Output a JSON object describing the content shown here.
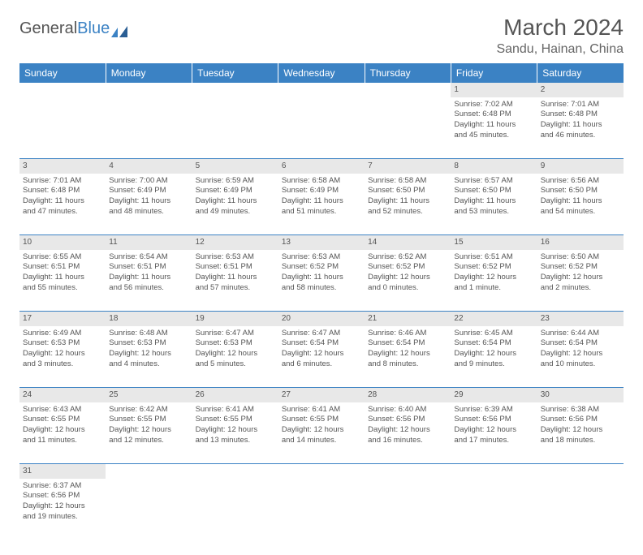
{
  "logo": {
    "text1": "General",
    "text2": "Blue"
  },
  "title": "March 2024",
  "location": "Sandu, Hainan, China",
  "colors": {
    "header_bg": "#3b82c4",
    "header_text": "#ffffff",
    "daynum_bg": "#e8e8e8",
    "border": "#3b82c4",
    "text": "#555555",
    "logo_blue": "#3b82c4"
  },
  "weekdays": [
    "Sunday",
    "Monday",
    "Tuesday",
    "Wednesday",
    "Thursday",
    "Friday",
    "Saturday"
  ],
  "weeks": [
    {
      "nums": [
        "",
        "",
        "",
        "",
        "",
        "1",
        "2"
      ],
      "cells": [
        null,
        null,
        null,
        null,
        null,
        {
          "sunrise": "Sunrise: 7:02 AM",
          "sunset": "Sunset: 6:48 PM",
          "day1": "Daylight: 11 hours",
          "day2": "and 45 minutes."
        },
        {
          "sunrise": "Sunrise: 7:01 AM",
          "sunset": "Sunset: 6:48 PM",
          "day1": "Daylight: 11 hours",
          "day2": "and 46 minutes."
        }
      ]
    },
    {
      "nums": [
        "3",
        "4",
        "5",
        "6",
        "7",
        "8",
        "9"
      ],
      "cells": [
        {
          "sunrise": "Sunrise: 7:01 AM",
          "sunset": "Sunset: 6:48 PM",
          "day1": "Daylight: 11 hours",
          "day2": "and 47 minutes."
        },
        {
          "sunrise": "Sunrise: 7:00 AM",
          "sunset": "Sunset: 6:49 PM",
          "day1": "Daylight: 11 hours",
          "day2": "and 48 minutes."
        },
        {
          "sunrise": "Sunrise: 6:59 AM",
          "sunset": "Sunset: 6:49 PM",
          "day1": "Daylight: 11 hours",
          "day2": "and 49 minutes."
        },
        {
          "sunrise": "Sunrise: 6:58 AM",
          "sunset": "Sunset: 6:49 PM",
          "day1": "Daylight: 11 hours",
          "day2": "and 51 minutes."
        },
        {
          "sunrise": "Sunrise: 6:58 AM",
          "sunset": "Sunset: 6:50 PM",
          "day1": "Daylight: 11 hours",
          "day2": "and 52 minutes."
        },
        {
          "sunrise": "Sunrise: 6:57 AM",
          "sunset": "Sunset: 6:50 PM",
          "day1": "Daylight: 11 hours",
          "day2": "and 53 minutes."
        },
        {
          "sunrise": "Sunrise: 6:56 AM",
          "sunset": "Sunset: 6:50 PM",
          "day1": "Daylight: 11 hours",
          "day2": "and 54 minutes."
        }
      ]
    },
    {
      "nums": [
        "10",
        "11",
        "12",
        "13",
        "14",
        "15",
        "16"
      ],
      "cells": [
        {
          "sunrise": "Sunrise: 6:55 AM",
          "sunset": "Sunset: 6:51 PM",
          "day1": "Daylight: 11 hours",
          "day2": "and 55 minutes."
        },
        {
          "sunrise": "Sunrise: 6:54 AM",
          "sunset": "Sunset: 6:51 PM",
          "day1": "Daylight: 11 hours",
          "day2": "and 56 minutes."
        },
        {
          "sunrise": "Sunrise: 6:53 AM",
          "sunset": "Sunset: 6:51 PM",
          "day1": "Daylight: 11 hours",
          "day2": "and 57 minutes."
        },
        {
          "sunrise": "Sunrise: 6:53 AM",
          "sunset": "Sunset: 6:52 PM",
          "day1": "Daylight: 11 hours",
          "day2": "and 58 minutes."
        },
        {
          "sunrise": "Sunrise: 6:52 AM",
          "sunset": "Sunset: 6:52 PM",
          "day1": "Daylight: 12 hours",
          "day2": "and 0 minutes."
        },
        {
          "sunrise": "Sunrise: 6:51 AM",
          "sunset": "Sunset: 6:52 PM",
          "day1": "Daylight: 12 hours",
          "day2": "and 1 minute."
        },
        {
          "sunrise": "Sunrise: 6:50 AM",
          "sunset": "Sunset: 6:52 PM",
          "day1": "Daylight: 12 hours",
          "day2": "and 2 minutes."
        }
      ]
    },
    {
      "nums": [
        "17",
        "18",
        "19",
        "20",
        "21",
        "22",
        "23"
      ],
      "cells": [
        {
          "sunrise": "Sunrise: 6:49 AM",
          "sunset": "Sunset: 6:53 PM",
          "day1": "Daylight: 12 hours",
          "day2": "and 3 minutes."
        },
        {
          "sunrise": "Sunrise: 6:48 AM",
          "sunset": "Sunset: 6:53 PM",
          "day1": "Daylight: 12 hours",
          "day2": "and 4 minutes."
        },
        {
          "sunrise": "Sunrise: 6:47 AM",
          "sunset": "Sunset: 6:53 PM",
          "day1": "Daylight: 12 hours",
          "day2": "and 5 minutes."
        },
        {
          "sunrise": "Sunrise: 6:47 AM",
          "sunset": "Sunset: 6:54 PM",
          "day1": "Daylight: 12 hours",
          "day2": "and 6 minutes."
        },
        {
          "sunrise": "Sunrise: 6:46 AM",
          "sunset": "Sunset: 6:54 PM",
          "day1": "Daylight: 12 hours",
          "day2": "and 8 minutes."
        },
        {
          "sunrise": "Sunrise: 6:45 AM",
          "sunset": "Sunset: 6:54 PM",
          "day1": "Daylight: 12 hours",
          "day2": "and 9 minutes."
        },
        {
          "sunrise": "Sunrise: 6:44 AM",
          "sunset": "Sunset: 6:54 PM",
          "day1": "Daylight: 12 hours",
          "day2": "and 10 minutes."
        }
      ]
    },
    {
      "nums": [
        "24",
        "25",
        "26",
        "27",
        "28",
        "29",
        "30"
      ],
      "cells": [
        {
          "sunrise": "Sunrise: 6:43 AM",
          "sunset": "Sunset: 6:55 PM",
          "day1": "Daylight: 12 hours",
          "day2": "and 11 minutes."
        },
        {
          "sunrise": "Sunrise: 6:42 AM",
          "sunset": "Sunset: 6:55 PM",
          "day1": "Daylight: 12 hours",
          "day2": "and 12 minutes."
        },
        {
          "sunrise": "Sunrise: 6:41 AM",
          "sunset": "Sunset: 6:55 PM",
          "day1": "Daylight: 12 hours",
          "day2": "and 13 minutes."
        },
        {
          "sunrise": "Sunrise: 6:41 AM",
          "sunset": "Sunset: 6:55 PM",
          "day1": "Daylight: 12 hours",
          "day2": "and 14 minutes."
        },
        {
          "sunrise": "Sunrise: 6:40 AM",
          "sunset": "Sunset: 6:56 PM",
          "day1": "Daylight: 12 hours",
          "day2": "and 16 minutes."
        },
        {
          "sunrise": "Sunrise: 6:39 AM",
          "sunset": "Sunset: 6:56 PM",
          "day1": "Daylight: 12 hours",
          "day2": "and 17 minutes."
        },
        {
          "sunrise": "Sunrise: 6:38 AM",
          "sunset": "Sunset: 6:56 PM",
          "day1": "Daylight: 12 hours",
          "day2": "and 18 minutes."
        }
      ]
    },
    {
      "nums": [
        "31",
        "",
        "",
        "",
        "",
        "",
        ""
      ],
      "cells": [
        {
          "sunrise": "Sunrise: 6:37 AM",
          "sunset": "Sunset: 6:56 PM",
          "day1": "Daylight: 12 hours",
          "day2": "and 19 minutes."
        },
        null,
        null,
        null,
        null,
        null,
        null
      ]
    }
  ]
}
